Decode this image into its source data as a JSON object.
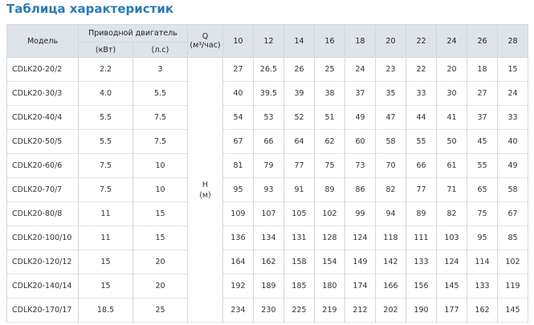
{
  "title": "Таблица характеристик",
  "header": {
    "model": "Модель",
    "motor": "Приводной двигатель",
    "kw": "(кВт)",
    "hp": "(л.с)",
    "q": "Q",
    "q_unit": "(м³/час)",
    "flows": [
      "10",
      "12",
      "14",
      "16",
      "18",
      "20",
      "22",
      "24",
      "26",
      "28"
    ]
  },
  "head_label": "H",
  "head_unit": "(м)",
  "rows": [
    {
      "model": "CDLK20-20/2",
      "kw": "2.2",
      "hp": "3",
      "heads": [
        "27",
        "26.5",
        "26",
        "25",
        "24",
        "23",
        "22",
        "20",
        "18",
        "15"
      ]
    },
    {
      "model": "CDLK20-30/3",
      "kw": "4.0",
      "hp": "5.5",
      "heads": [
        "40",
        "39.5",
        "39",
        "38",
        "37",
        "35",
        "33",
        "30",
        "27",
        "24"
      ]
    },
    {
      "model": "CDLK20-40/4",
      "kw": "5.5",
      "hp": "7.5",
      "heads": [
        "54",
        "53",
        "52",
        "51",
        "49",
        "47",
        "44",
        "41",
        "37",
        "33"
      ]
    },
    {
      "model": "CDLK20-50/5",
      "kw": "5.5",
      "hp": "7.5",
      "heads": [
        "67",
        "66",
        "64",
        "62",
        "60",
        "58",
        "55",
        "50",
        "45",
        "40"
      ]
    },
    {
      "model": "CDLK20-60/6",
      "kw": "7.5",
      "hp": "10",
      "heads": [
        "81",
        "79",
        "77",
        "75",
        "73",
        "70",
        "66",
        "61",
        "55",
        "49"
      ]
    },
    {
      "model": "CDLK20-70/7",
      "kw": "7.5",
      "hp": "10",
      "heads": [
        "95",
        "93",
        "91",
        "89",
        "86",
        "82",
        "77",
        "71",
        "65",
        "58"
      ]
    },
    {
      "model": "CDLK20-80/8",
      "kw": "11",
      "hp": "15",
      "heads": [
        "109",
        "107",
        "105",
        "102",
        "99",
        "94",
        "89",
        "82",
        "75",
        "67"
      ]
    },
    {
      "model": "CDLK20-100/10",
      "kw": "11",
      "hp": "15",
      "heads": [
        "136",
        "134",
        "131",
        "128",
        "124",
        "118",
        "111",
        "103",
        "95",
        "85"
      ]
    },
    {
      "model": "CDLK20-120/12",
      "kw": "15",
      "hp": "20",
      "heads": [
        "164",
        "162",
        "158",
        "154",
        "149",
        "142",
        "133",
        "124",
        "114",
        "102"
      ]
    },
    {
      "model": "CDLK20-140/14",
      "kw": "15",
      "hp": "20",
      "heads": [
        "192",
        "189",
        "185",
        "180",
        "174",
        "166",
        "156",
        "145",
        "133",
        "119"
      ]
    },
    {
      "model": "CDLK20-170/17",
      "kw": "18.5",
      "hp": "25",
      "heads": [
        "234",
        "230",
        "225",
        "219",
        "212",
        "202",
        "190",
        "177",
        "162",
        "145"
      ]
    }
  ]
}
